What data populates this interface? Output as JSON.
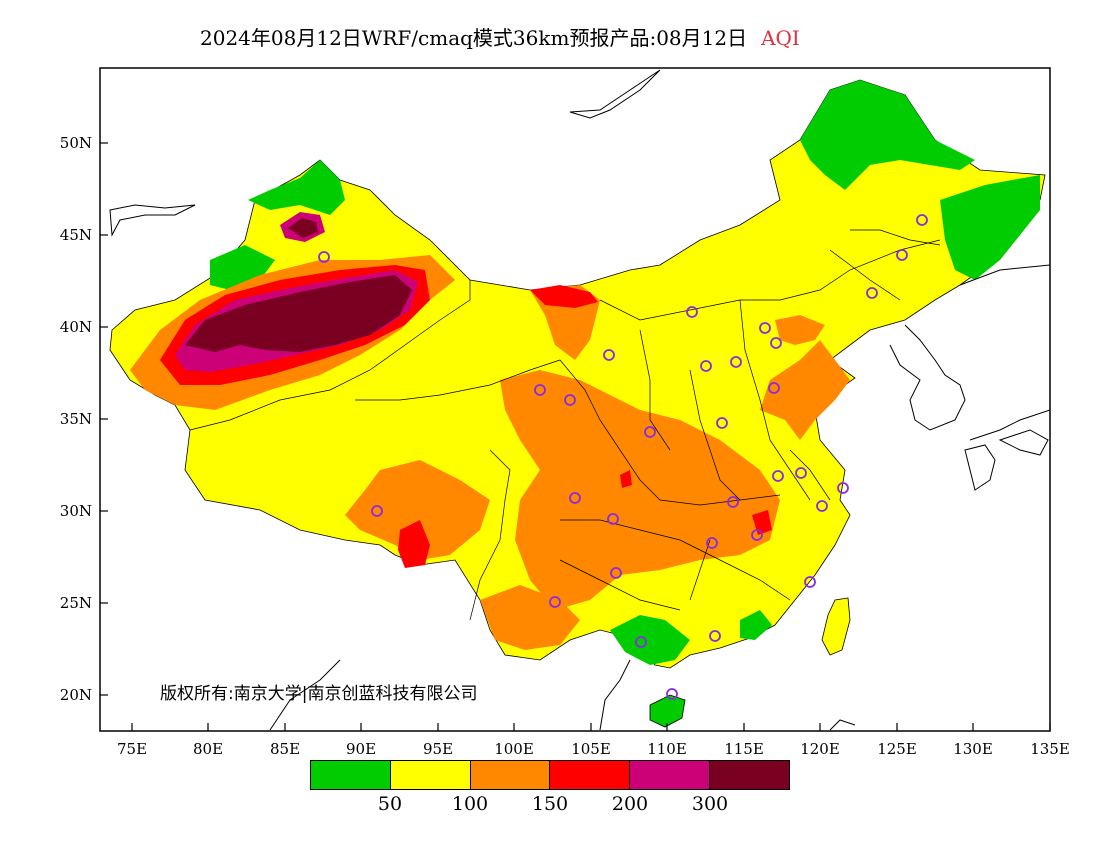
{
  "title": {
    "main": "2024年08月12日WRF/cmaq模式36km预报产品:08月12日",
    "variable": "AQI"
  },
  "copyright": "版权所有:南京大学|南京创蓝科技有限公司",
  "latitude_ticks": [
    "50N",
    "45N",
    "40N",
    "35N",
    "30N",
    "25N",
    "20N"
  ],
  "longitude_ticks": [
    "75E",
    "80E",
    "85E",
    "90E",
    "95E",
    "100E",
    "105E",
    "110E",
    "115E",
    "120E",
    "125E",
    "130E",
    "135E"
  ],
  "legend": {
    "colors": [
      "#00cc00",
      "#ffff00",
      "#ff8800",
      "#ff0000",
      "#cc0077",
      "#7a0022"
    ],
    "labels": [
      "50",
      "100",
      "150",
      "200",
      "300"
    ]
  },
  "colors": {
    "background": "#ffffff",
    "title_accent": "#e0303c",
    "station_marker": "#8a2be2",
    "border": "#000000"
  }
}
